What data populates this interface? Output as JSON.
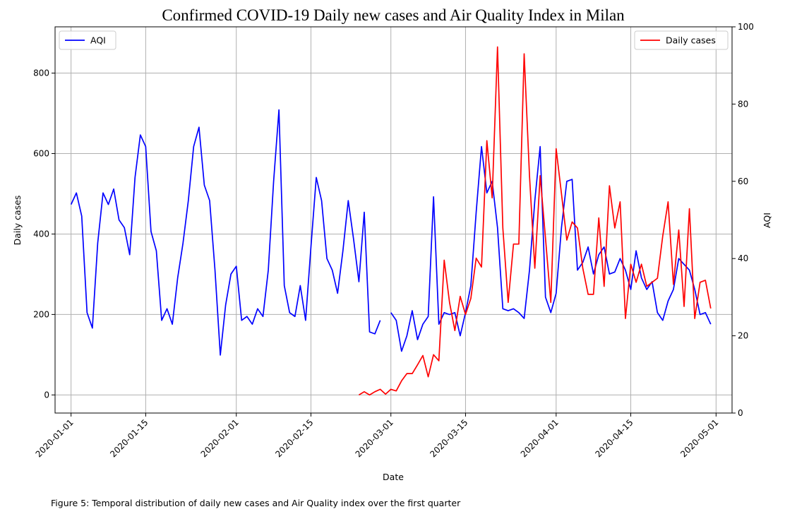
{
  "chart_data": {
    "type": "line",
    "title": "Confirmed COVID-19 Daily new cases and Air Quality Index in Milan",
    "xlabel": "Date",
    "ylabel_left": "Daily cases",
    "ylabel_right": "AQI",
    "x_range": [
      "2019-12-29",
      "2020-05-04"
    ],
    "y_left_range": [
      -45,
      915
    ],
    "y_right_range": [
      0,
      100
    ],
    "x_ticks": [
      "2020-01-01",
      "2020-01-15",
      "2020-02-01",
      "2020-02-15",
      "2020-03-01",
      "2020-03-15",
      "2020-04-01",
      "2020-04-15",
      "2020-05-01"
    ],
    "y_left_ticks": [
      0,
      200,
      400,
      600,
      800
    ],
    "y_right_ticks": [
      0,
      20,
      40,
      60,
      80,
      100
    ],
    "grid": true,
    "legend": [
      {
        "label": "AQI",
        "color": "#0000ff",
        "placement": "top-left"
      },
      {
        "label": "Daily cases",
        "color": "#ff0000",
        "placement": "top-right"
      }
    ],
    "series": [
      {
        "name": "AQI",
        "axis": "right",
        "color": "#0000ff",
        "points": [
          [
            "2020-01-01",
            54
          ],
          [
            "2020-01-02",
            57
          ],
          [
            "2020-01-03",
            51
          ],
          [
            "2020-01-04",
            26
          ],
          [
            "2020-01-05",
            22
          ],
          [
            "2020-01-06",
            44
          ],
          [
            "2020-01-07",
            57
          ],
          [
            "2020-01-08",
            54
          ],
          [
            "2020-01-09",
            58
          ],
          [
            "2020-01-10",
            50
          ],
          [
            "2020-01-11",
            48
          ],
          [
            "2020-01-12",
            41
          ],
          [
            "2020-01-13",
            61
          ],
          [
            "2020-01-14",
            72
          ],
          [
            "2020-01-15",
            69
          ],
          [
            "2020-01-16",
            47
          ],
          [
            "2020-01-17",
            42
          ],
          [
            "2020-01-18",
            24
          ],
          [
            "2020-01-19",
            27
          ],
          [
            "2020-01-20",
            23
          ],
          [
            "2020-01-21",
            35
          ],
          [
            "2020-01-22",
            44
          ],
          [
            "2020-01-23",
            55
          ],
          [
            "2020-01-24",
            69
          ],
          [
            "2020-01-25",
            74
          ],
          [
            "2020-01-26",
            59
          ],
          [
            "2020-01-27",
            55
          ],
          [
            "2020-01-28",
            37
          ],
          [
            "2020-01-29",
            15
          ],
          [
            "2020-01-30",
            28
          ],
          [
            "2020-01-31",
            36
          ],
          [
            "2020-02-01",
            38
          ],
          [
            "2020-02-02",
            24
          ],
          [
            "2020-02-03",
            25
          ],
          [
            "2020-02-04",
            23
          ],
          [
            "2020-02-05",
            27
          ],
          [
            "2020-02-06",
            25
          ],
          [
            "2020-02-07",
            37
          ],
          [
            "2020-02-08",
            60
          ],
          [
            "2020-02-09",
            78.5
          ],
          [
            "2020-02-10",
            33
          ],
          [
            "2020-02-11",
            26
          ],
          [
            "2020-02-12",
            25
          ],
          [
            "2020-02-13",
            33
          ],
          [
            "2020-02-14",
            24
          ],
          [
            "2020-02-15",
            43
          ],
          [
            "2020-02-16",
            61
          ],
          [
            "2020-02-17",
            55
          ],
          [
            "2020-02-18",
            40
          ],
          [
            "2020-02-19",
            37
          ],
          [
            "2020-02-20",
            31
          ],
          [
            "2020-02-21",
            42
          ],
          [
            "2020-02-22",
            55
          ],
          [
            "2020-02-23",
            45
          ],
          [
            "2020-02-24",
            34
          ],
          [
            "2020-02-25",
            52
          ],
          [
            "2020-02-26",
            21
          ],
          [
            "2020-02-27",
            20.5
          ],
          [
            "2020-02-28",
            24
          ],
          [
            "2020-02-29",
            null
          ],
          [
            "2020-03-01",
            26
          ],
          [
            "2020-03-02",
            24
          ],
          [
            "2020-03-03",
            16
          ],
          [
            "2020-03-04",
            20
          ],
          [
            "2020-03-05",
            26.5
          ],
          [
            "2020-03-06",
            19
          ],
          [
            "2020-03-07",
            23
          ],
          [
            "2020-03-08",
            25
          ],
          [
            "2020-03-09",
            56
          ],
          [
            "2020-03-10",
            23
          ],
          [
            "2020-03-11",
            26
          ],
          [
            "2020-03-12",
            25.5
          ],
          [
            "2020-03-13",
            26
          ],
          [
            "2020-03-14",
            20
          ],
          [
            "2020-03-15",
            26
          ],
          [
            "2020-03-16",
            33
          ],
          [
            "2020-03-17",
            52
          ],
          [
            "2020-03-18",
            69
          ],
          [
            "2020-03-19",
            57
          ],
          [
            "2020-03-20",
            60
          ],
          [
            "2020-03-21",
            48
          ],
          [
            "2020-03-22",
            27
          ],
          [
            "2020-03-23",
            26.5
          ],
          [
            "2020-03-24",
            27
          ],
          [
            "2020-03-25",
            26
          ],
          [
            "2020-03-26",
            24.5
          ],
          [
            "2020-03-27",
            37
          ],
          [
            "2020-03-28",
            55
          ],
          [
            "2020-03-29",
            69
          ],
          [
            "2020-03-30",
            30
          ],
          [
            "2020-03-31",
            26
          ],
          [
            "2020-04-01",
            31
          ],
          [
            "2020-04-02",
            48
          ],
          [
            "2020-04-03",
            60
          ],
          [
            "2020-04-04",
            60.5
          ],
          [
            "2020-04-05",
            37
          ],
          [
            "2020-04-06",
            39
          ],
          [
            "2020-04-07",
            43
          ],
          [
            "2020-04-08",
            36
          ],
          [
            "2020-04-09",
            41
          ],
          [
            "2020-04-10",
            43
          ],
          [
            "2020-04-11",
            36
          ],
          [
            "2020-04-12",
            36.5
          ],
          [
            "2020-04-13",
            40
          ],
          [
            "2020-04-14",
            37
          ],
          [
            "2020-04-15",
            32
          ],
          [
            "2020-04-16",
            42
          ],
          [
            "2020-04-17",
            35
          ],
          [
            "2020-04-18",
            32
          ],
          [
            "2020-04-19",
            34
          ],
          [
            "2020-04-20",
            26
          ],
          [
            "2020-04-21",
            24
          ],
          [
            "2020-04-22",
            29
          ],
          [
            "2020-04-23",
            32
          ],
          [
            "2020-04-24",
            40
          ],
          [
            "2020-04-25",
            38.5
          ],
          [
            "2020-04-26",
            37
          ],
          [
            "2020-04-27",
            32
          ],
          [
            "2020-04-28",
            25.5
          ],
          [
            "2020-04-29",
            26
          ],
          [
            "2020-04-30",
            23
          ]
        ]
      },
      {
        "name": "Daily cases",
        "axis": "left",
        "color": "#ff0000",
        "points": [
          [
            "2020-02-24",
            0
          ],
          [
            "2020-02-25",
            8
          ],
          [
            "2020-02-26",
            0
          ],
          [
            "2020-02-27",
            8
          ],
          [
            "2020-02-28",
            14
          ],
          [
            "2020-02-29",
            2
          ],
          [
            "2020-03-01",
            14
          ],
          [
            "2020-03-02",
            10
          ],
          [
            "2020-03-03",
            35
          ],
          [
            "2020-03-04",
            53
          ],
          [
            "2020-03-05",
            53
          ],
          [
            "2020-03-06",
            75
          ],
          [
            "2020-03-07",
            98
          ],
          [
            "2020-03-08",
            45
          ],
          [
            "2020-03-09",
            100
          ],
          [
            "2020-03-10",
            85
          ],
          [
            "2020-03-11",
            335
          ],
          [
            "2020-03-12",
            230
          ],
          [
            "2020-03-13",
            160
          ],
          [
            "2020-03-14",
            245
          ],
          [
            "2020-03-15",
            200
          ],
          [
            "2020-03-16",
            240
          ],
          [
            "2020-03-17",
            340
          ],
          [
            "2020-03-18",
            318
          ],
          [
            "2020-03-19",
            632
          ],
          [
            "2020-03-20",
            490
          ],
          [
            "2020-03-21",
            865
          ],
          [
            "2020-03-22",
            415
          ],
          [
            "2020-03-23",
            230
          ],
          [
            "2020-03-24",
            375
          ],
          [
            "2020-03-25",
            375
          ],
          [
            "2020-03-26",
            848
          ],
          [
            "2020-03-27",
            545
          ],
          [
            "2020-03-28",
            315
          ],
          [
            "2020-03-29",
            545
          ],
          [
            "2020-03-30",
            390
          ],
          [
            "2020-03-31",
            230
          ],
          [
            "2020-04-01",
            612
          ],
          [
            "2020-04-02",
            500
          ],
          [
            "2020-04-03",
            385
          ],
          [
            "2020-04-04",
            430
          ],
          [
            "2020-04-05",
            415
          ],
          [
            "2020-04-06",
            315
          ],
          [
            "2020-04-07",
            250
          ],
          [
            "2020-04-08",
            250
          ],
          [
            "2020-04-09",
            440
          ],
          [
            "2020-04-10",
            270
          ],
          [
            "2020-04-11",
            520
          ],
          [
            "2020-04-12",
            415
          ],
          [
            "2020-04-13",
            480
          ],
          [
            "2020-04-14",
            190
          ],
          [
            "2020-04-15",
            325
          ],
          [
            "2020-04-16",
            280
          ],
          [
            "2020-04-17",
            325
          ],
          [
            "2020-04-18",
            270
          ],
          [
            "2020-04-19",
            280
          ],
          [
            "2020-04-20",
            290
          ],
          [
            "2020-04-21",
            395
          ],
          [
            "2020-04-22",
            480
          ],
          [
            "2020-04-23",
            275
          ],
          [
            "2020-04-24",
            410
          ],
          [
            "2020-04-25",
            220
          ],
          [
            "2020-04-26",
            463
          ],
          [
            "2020-04-27",
            190
          ],
          [
            "2020-04-28",
            280
          ],
          [
            "2020-04-29",
            285
          ],
          [
            "2020-04-30",
            215
          ]
        ]
      }
    ]
  },
  "caption": "Figure 5: Temporal distribution of daily new cases and Air Quality index over the first quarter"
}
